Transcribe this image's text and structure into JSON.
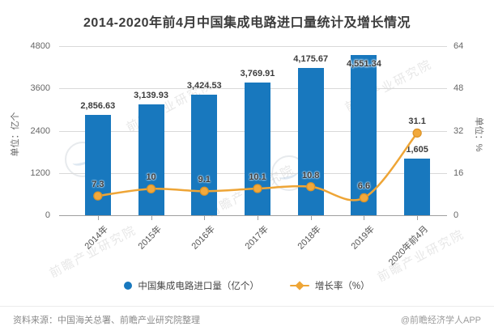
{
  "title": "2014-2020年前4月中国集成电路进口量统计及增长情况",
  "chart_data": {
    "type": "bar",
    "subtype": "bar+line-dual-axis",
    "categories": [
      "2014年",
      "2015年",
      "2016年",
      "2017年",
      "2018年",
      "2019年",
      "2020年前4月"
    ],
    "series": [
      {
        "name": "中国集成电路进口量（亿个）",
        "type": "bar",
        "axis": "left",
        "color": "#1878be",
        "values": [
          2856.63,
          3139.93,
          3424.53,
          3769.91,
          4175.67,
          4551.34,
          1605
        ],
        "labels": [
          "2,856.63",
          "3,139.93",
          "3,424.53",
          "3,769.91",
          "4,175.67",
          "4,551.34",
          "1,605"
        ]
      },
      {
        "name": "增长率（%）",
        "type": "line",
        "axis": "right",
        "color": "#eea536",
        "values": [
          7.3,
          10,
          9.1,
          10.1,
          10.8,
          6.6,
          31.1
        ],
        "labels": [
          "7.3",
          "10",
          "9.1",
          "10.1",
          "10.8",
          "6.6",
          "31.1"
        ]
      }
    ],
    "left_axis": {
      "title": "单位：亿个",
      "min": 0,
      "max": 4800,
      "ticks": [
        "0",
        "1200",
        "2400",
        "3600",
        "4800"
      ]
    },
    "right_axis": {
      "title": "单位：%",
      "min": 0,
      "max": 64,
      "ticks": [
        "0",
        "16",
        "32",
        "48",
        "64"
      ]
    },
    "grid": true,
    "legend_position": "bottom"
  },
  "legend": {
    "items": [
      {
        "label": "中国集成电路进口量（亿个）",
        "marker": "circle",
        "color": "#1878be"
      },
      {
        "label": "增长率（%）",
        "marker": "line-diamond",
        "color": "#eea536"
      }
    ]
  },
  "footer": {
    "source": "资料来源：中国海关总署、前瞻产业研究院整理",
    "credit": "@前瞻经济学人APP"
  },
  "watermark": {
    "text": "前瞻产业研究院",
    "logo": "qianzhan-circle-logo"
  }
}
